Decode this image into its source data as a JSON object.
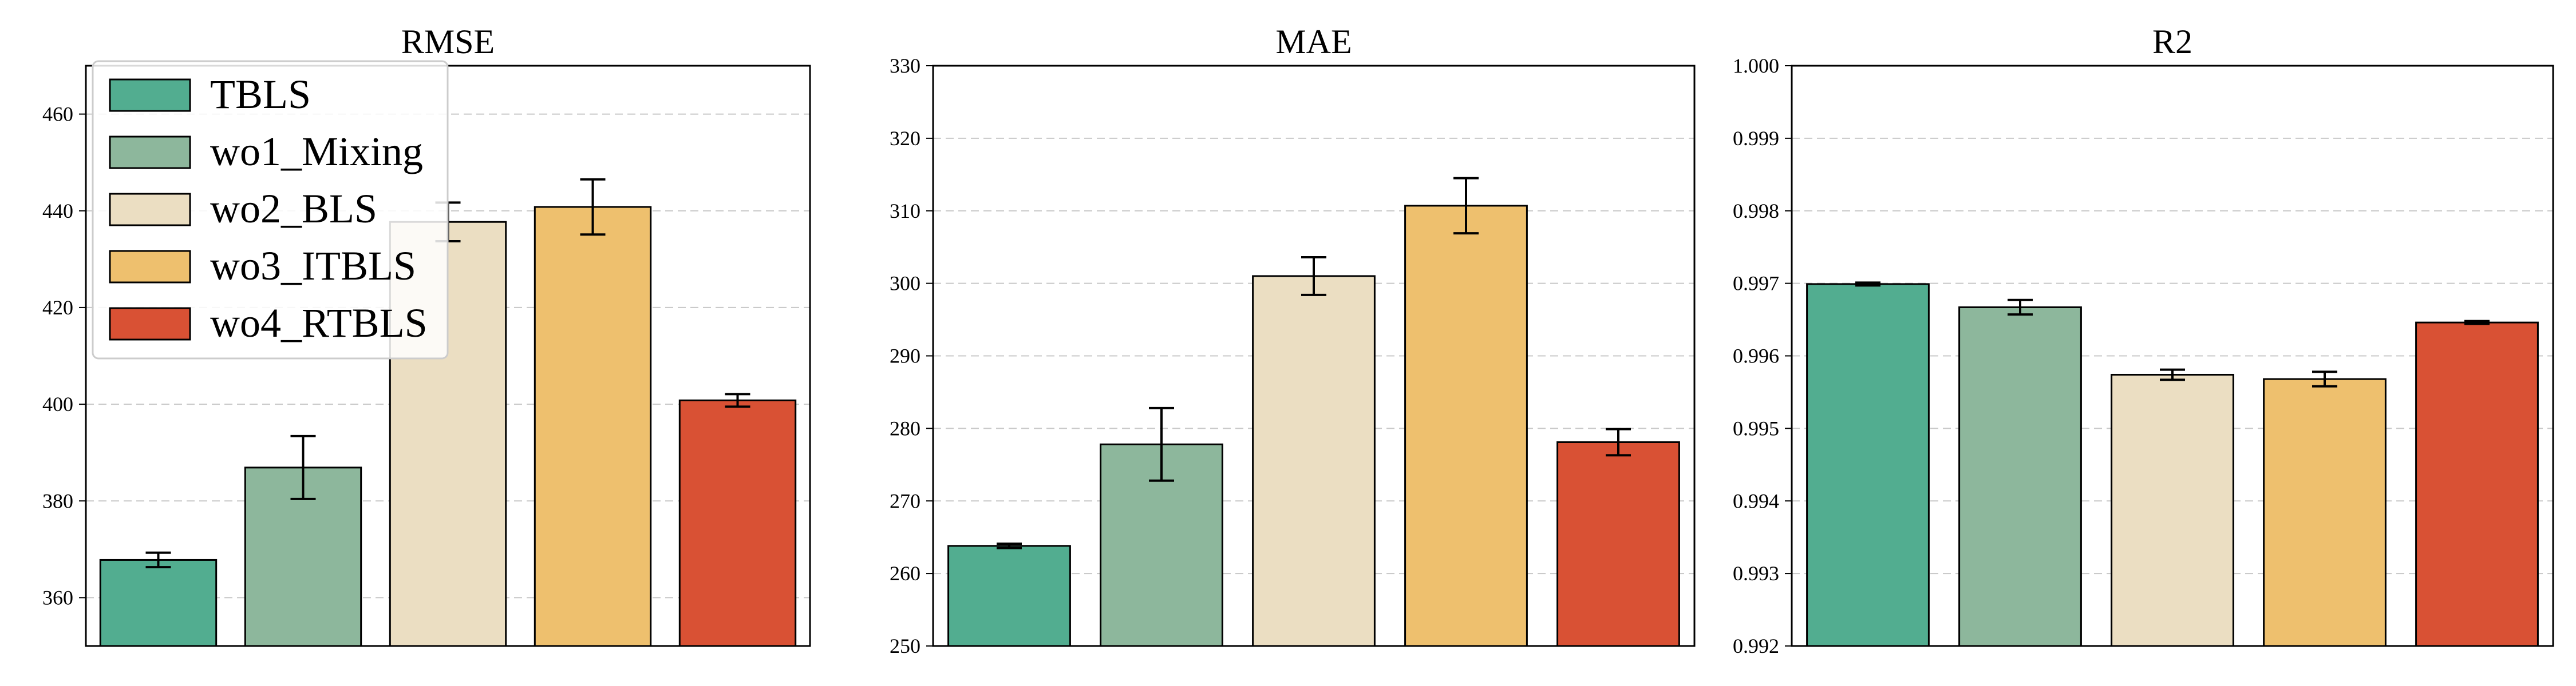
{
  "legend": {
    "placement": "upper-left",
    "entries": [
      {
        "label": "TBLS",
        "color": "#52AD90"
      },
      {
        "label": "wo1_Mixing",
        "color": "#8DB79C"
      },
      {
        "label": "wo2_BLS",
        "color": "#EBDEC2"
      },
      {
        "label": "wo3_ITBLS",
        "color": "#EEC06E"
      },
      {
        "label": "wo4_RTBLS",
        "color": "#D95134"
      }
    ]
  },
  "chart_data": [
    {
      "type": "bar",
      "title": "RMSE",
      "categories": [
        "TBLS",
        "wo1_Mixing",
        "wo2_BLS",
        "wo3_ITBLS",
        "wo4_RTBLS"
      ],
      "values": [
        367.8,
        386.9,
        437.7,
        440.8,
        400.8
      ],
      "errors": [
        1.5,
        6.5,
        4.0,
        5.7,
        1.3
      ],
      "ylim": [
        350,
        470
      ],
      "yticks": [
        "360",
        "380",
        "400",
        "420",
        "440",
        "460"
      ],
      "grid": true
    },
    {
      "type": "bar",
      "title": "MAE",
      "categories": [
        "TBLS",
        "wo1_Mixing",
        "wo2_BLS",
        "wo3_ITBLS",
        "wo4_RTBLS"
      ],
      "values": [
        263.8,
        277.8,
        301.0,
        310.7,
        278.1
      ],
      "errors": [
        0.3,
        5.0,
        2.6,
        3.8,
        1.8
      ],
      "ylim": [
        250,
        330
      ],
      "yticks": [
        "250",
        "260",
        "270",
        "280",
        "290",
        "300",
        "310",
        "320",
        "330"
      ],
      "grid": true
    },
    {
      "type": "bar",
      "title": "R2",
      "categories": [
        "TBLS",
        "wo1_Mixing",
        "wo2_BLS",
        "wo3_ITBLS",
        "wo4_RTBLS"
      ],
      "values": [
        0.99699,
        0.99667,
        0.99574,
        0.99568,
        0.99646
      ],
      "errors": [
        2e-05,
        0.0001,
        7e-05,
        0.0001,
        2e-05
      ],
      "ylim": [
        0.992,
        1.0
      ],
      "yticks": [
        "0.992",
        "0.993",
        "0.994",
        "0.995",
        "0.996",
        "0.997",
        "0.998",
        "0.999",
        "1.000"
      ],
      "grid": true
    }
  ]
}
